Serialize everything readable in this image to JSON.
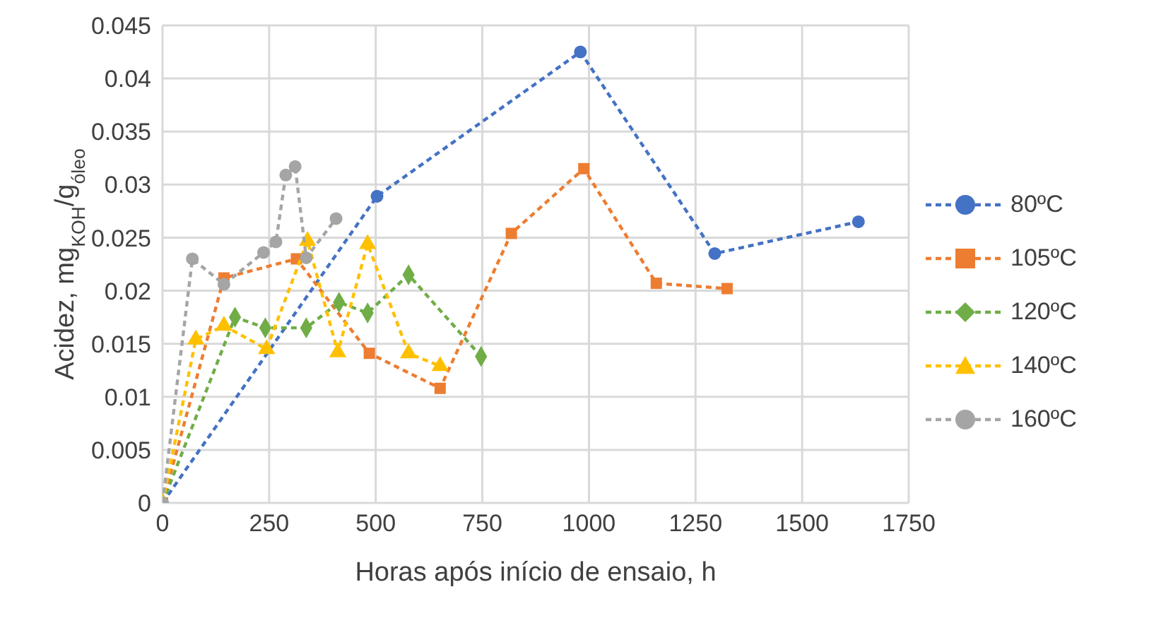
{
  "chart_data": {
    "type": "line",
    "xlabel": "Horas após início de ensaio, h",
    "ylabel": "Acidez, mg$_{KOH}$/g$_{óleo}$",
    "xlim": [
      0,
      1750
    ],
    "xticks": [
      0,
      250,
      500,
      750,
      1000,
      1250,
      1500,
      1750
    ],
    "ylim": [
      0,
      0.045
    ],
    "yticks": [
      0,
      0.005,
      0.01,
      0.015,
      0.02,
      0.025,
      0.03,
      0.035,
      0.04,
      0.045
    ],
    "grid": true,
    "legend": "right",
    "line_style": "dashed",
    "series": [
      {
        "name": "80ºC",
        "color": "#4472c4",
        "marker": "circle",
        "x": [
          0,
          503,
          980,
          1295,
          1632
        ],
        "values": [
          0,
          0.0289,
          0.0425,
          0.0235,
          0.0265
        ]
      },
      {
        "name": "105ºC",
        "color": "#ed7d31",
        "marker": "square",
        "x": [
          0,
          144,
          314,
          485,
          651,
          818,
          988,
          1158,
          1324
        ],
        "values": [
          0,
          0.0212,
          0.023,
          0.0141,
          0.0108,
          0.0254,
          0.0315,
          0.0207,
          0.0202
        ]
      },
      {
        "name": "120ºC",
        "color": "#70ad47",
        "marker": "diamond",
        "x": [
          0,
          170,
          241,
          337,
          414,
          481,
          577,
          747
        ],
        "values": [
          0,
          0.0175,
          0.0165,
          0.0165,
          0.0189,
          0.0179,
          0.0215,
          0.0138
        ]
      },
      {
        "name": "140ºC",
        "color": "#ffc000",
        "marker": "triangle",
        "x": [
          0,
          78,
          144,
          244,
          340,
          411,
          481,
          577,
          651
        ],
        "values": [
          0,
          0.0154,
          0.0167,
          0.0145,
          0.0247,
          0.0142,
          0.0244,
          0.0141,
          0.0129
        ]
      },
      {
        "name": "160ºC",
        "color": "#a5a5a5",
        "marker": "circle",
        "x": [
          0,
          70,
          144,
          237,
          266,
          289,
          311,
          337,
          407
        ],
        "values": [
          0,
          0.023,
          0.0206,
          0.0236,
          0.0246,
          0.0309,
          0.0317,
          0.0231,
          0.0268
        ]
      }
    ]
  }
}
